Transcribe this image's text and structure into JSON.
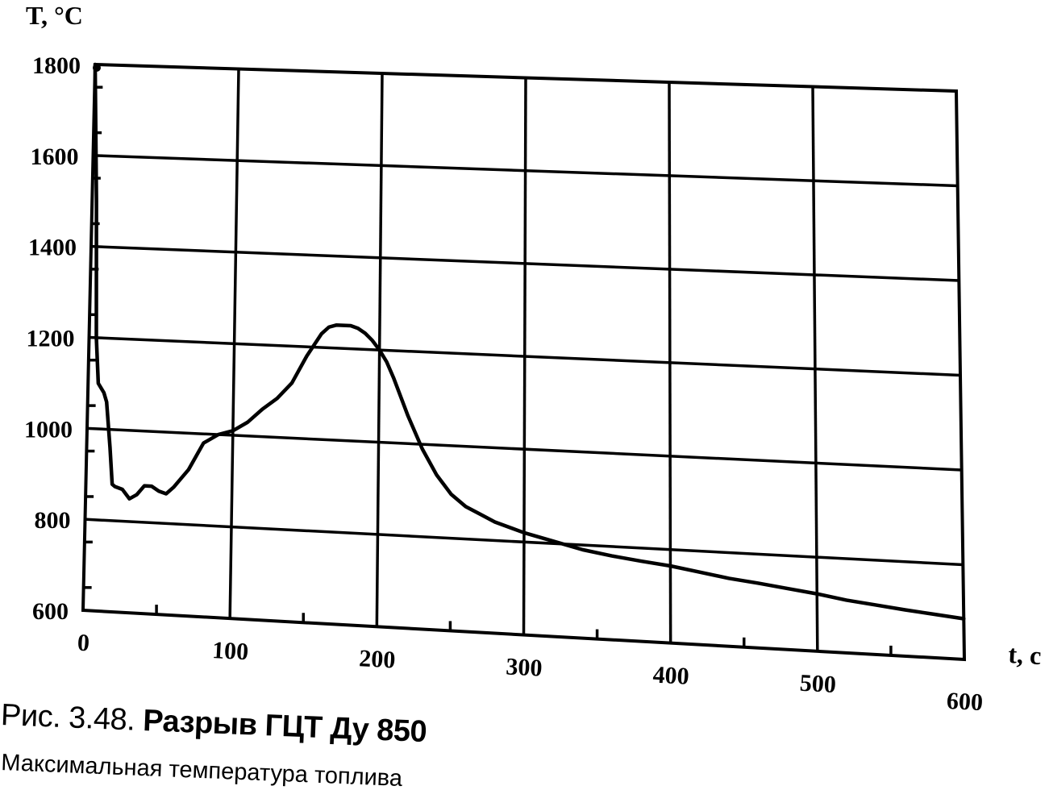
{
  "caption": {
    "figure_number": "Рис. 3.48.",
    "title": "Разрыв ГЦТ Ду 850",
    "subtitle": "Максимальная температура топлива"
  },
  "chart_data": {
    "type": "line",
    "title": "Разрыв ГЦТ Ду 850",
    "subtitle": "Максимальная температура топлива",
    "xlabel": "t, c",
    "ylabel": "T, °C",
    "xlim": [
      0,
      600
    ],
    "ylim": [
      600,
      1800
    ],
    "x_ticks": [
      0,
      100,
      200,
      300,
      400,
      500,
      600
    ],
    "x_tick_labels": [
      "0",
      "100",
      "200",
      "300",
      "400",
      "500",
      "600"
    ],
    "y_ticks": [
      600,
      800,
      1000,
      1200,
      1400,
      1600,
      1800
    ],
    "y_tick_labels": [
      "600",
      "800",
      "1000",
      "1200",
      "1400",
      "1600",
      "1800"
    ],
    "grid": true,
    "legend": "none",
    "series": [
      {
        "color": "#000000",
        "x": [
          0,
          3,
          5,
          7,
          9,
          11,
          13,
          16,
          18,
          20,
          25,
          30,
          35,
          40,
          45,
          50,
          55,
          60,
          65,
          70,
          75,
          80,
          90,
          100,
          110,
          120,
          130,
          140,
          150,
          160,
          165,
          170,
          175,
          180,
          185,
          190,
          195,
          200,
          205,
          210,
          220,
          230,
          240,
          250,
          260,
          270,
          280,
          300,
          320,
          340,
          360,
          380,
          400,
          420,
          440,
          460,
          480,
          500,
          520,
          540,
          560,
          580,
          600
        ],
        "y": [
          1800,
          1500,
          1200,
          1100,
          1090,
          1080,
          1060,
          960,
          880,
          875,
          870,
          850,
          860,
          880,
          880,
          870,
          865,
          880,
          900,
          920,
          950,
          980,
          1000,
          1010,
          1030,
          1060,
          1085,
          1120,
          1180,
          1230,
          1245,
          1250,
          1250,
          1250,
          1245,
          1235,
          1220,
          1200,
          1175,
          1140,
          1060,
          990,
          935,
          895,
          870,
          855,
          840,
          820,
          805,
          790,
          780,
          772,
          765,
          755,
          745,
          738,
          730,
          722,
          712,
          705,
          698,
          692,
          686
        ]
      }
    ]
  }
}
